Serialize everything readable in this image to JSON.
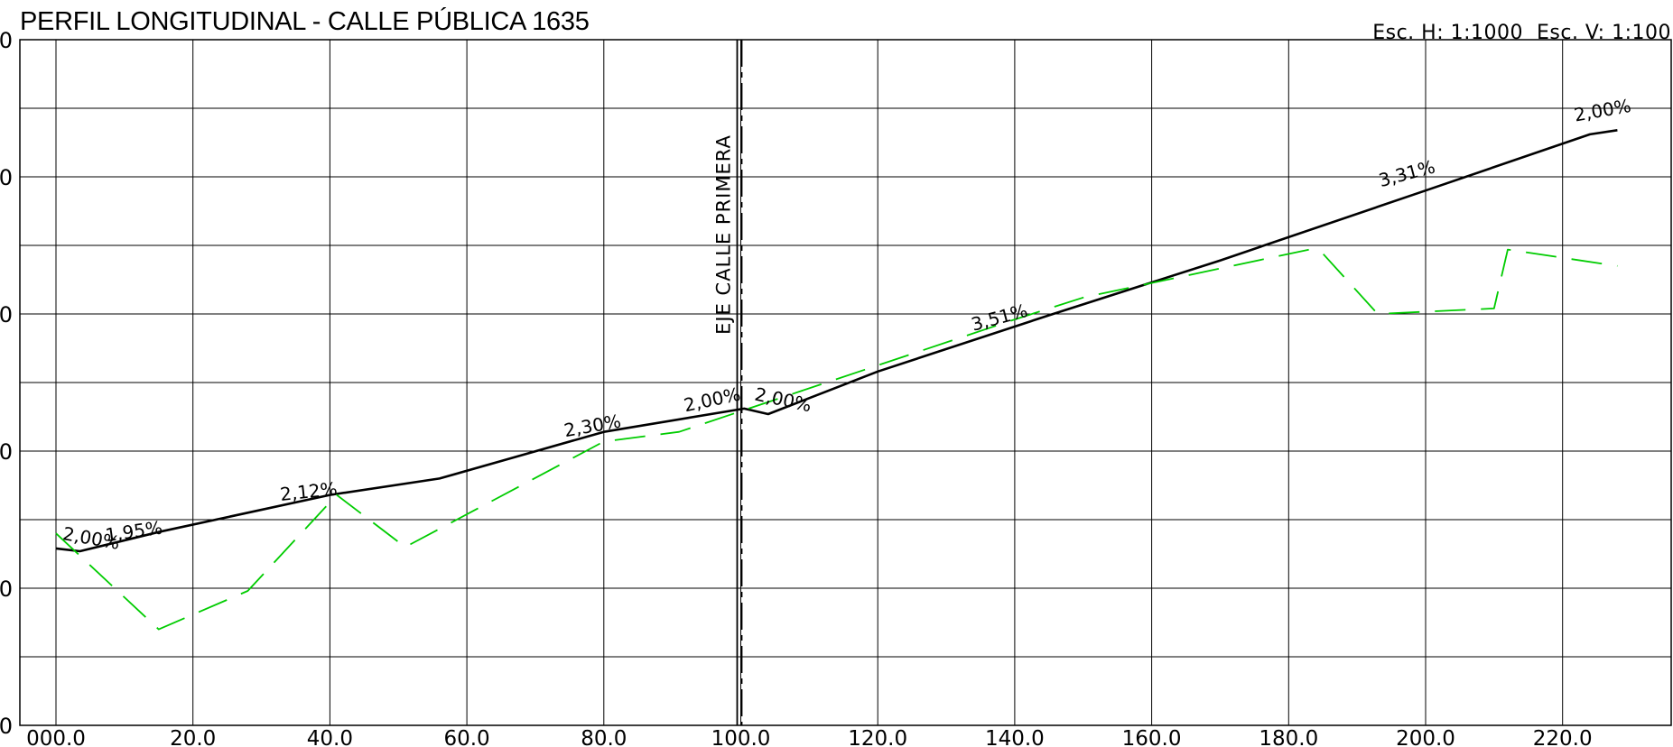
{
  "title": "PERFIL LONGITUDINAL - CALLE PÚBLICA 1635",
  "scale_text": "Esc. H: 1:1000  Esc. V: 1:100",
  "colors": {
    "axis": "#000000",
    "proposed": "#000000",
    "terrain": "#00cc00",
    "grid": "#000000"
  },
  "chart_data": {
    "type": "line",
    "title": "PERFIL LONGITUDINAL - CALLE PÚBLICA 1635",
    "xlim": [
      0,
      233
    ],
    "ylim": [
      0,
      5
    ],
    "x_ticks": [
      0,
      20,
      40,
      60,
      80,
      100,
      120,
      140,
      160,
      180,
      200,
      220
    ],
    "x_tick_labels": [
      "000.0",
      "20.0",
      "40.0",
      "60.0",
      "80.0",
      "100.0",
      "120.0",
      "140.0",
      "160.0",
      "180.0",
      "200.0",
      "220.0"
    ],
    "y_ticks": [
      0,
      1,
      2,
      3,
      4,
      5
    ],
    "y_tick_labels": [
      "0",
      "0",
      "0",
      "0",
      "0",
      "0"
    ],
    "grid": true,
    "series": [
      {
        "style": "solid",
        "color": "#000000",
        "x": [
          0,
          3.5,
          15,
          40,
          56,
          80,
          100.5,
          104,
          120,
          145,
          170,
          200,
          224,
          228
        ],
        "y": [
          1.29,
          1.27,
          1.41,
          1.68,
          1.8,
          2.14,
          2.31,
          2.27,
          2.58,
          2.99,
          3.39,
          3.9,
          4.31,
          4.34
        ]
      },
      {
        "style": "dashed",
        "color": "#00cc00",
        "x": [
          0,
          15,
          28,
          41,
          51,
          80,
          91,
          140,
          150,
          183,
          185,
          193,
          210,
          212,
          228
        ],
        "y": [
          1.4,
          0.7,
          0.98,
          1.68,
          1.3,
          2.07,
          2.14,
          2.96,
          3.12,
          3.47,
          3.44,
          3.0,
          3.04,
          3.47,
          3.35
        ]
      }
    ],
    "vertical_marker": {
      "x": 100,
      "label": "EJE  CALLE  PRIMERA"
    },
    "annotations": [
      {
        "text": "2,00%",
        "x": 5,
        "y": 1.32,
        "angle": 10
      },
      {
        "text": "1,95%",
        "x": 11.5,
        "y": 1.37,
        "angle": -8
      },
      {
        "text": "2,12%",
        "x": 37,
        "y": 1.66,
        "angle": -6
      },
      {
        "text": "2,30%",
        "x": 78.5,
        "y": 2.14,
        "angle": -10
      },
      {
        "text": "2,00%",
        "x": 96,
        "y": 2.33,
        "angle": -12
      },
      {
        "text": "2,00%",
        "x": 106,
        "y": 2.33,
        "angle": 12
      },
      {
        "text": "3,51%",
        "x": 138,
        "y": 2.93,
        "angle": -15
      },
      {
        "text": "3,31%",
        "x": 197.5,
        "y": 3.98,
        "angle": -15
      },
      {
        "text": "2,00%",
        "x": 226,
        "y": 4.44,
        "angle": -10
      }
    ]
  }
}
